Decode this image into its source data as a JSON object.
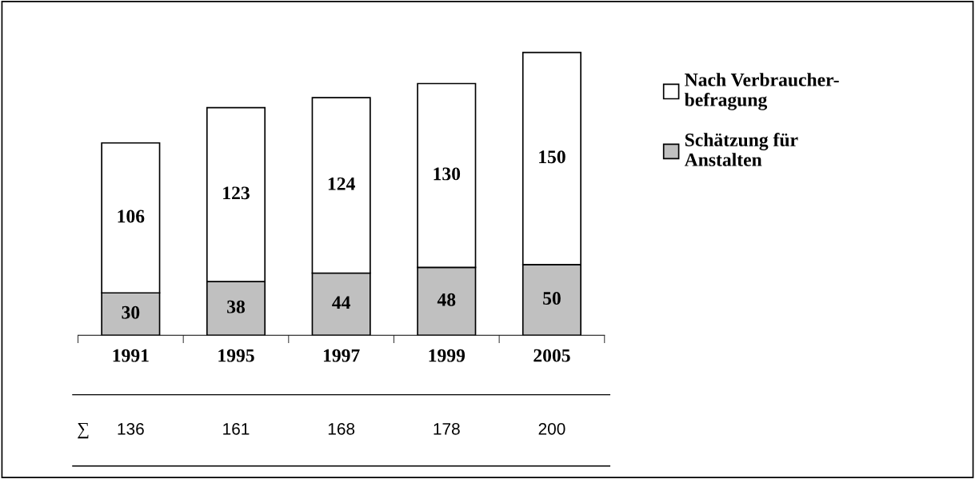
{
  "chart_data": {
    "type": "bar",
    "stacked": true,
    "categories": [
      "1991",
      "1995",
      "1997",
      "1999",
      "2005"
    ],
    "series": [
      {
        "name": "Schätzung für\nAnstalten",
        "color": "#c0c0c0",
        "values": [
          30,
          38,
          44,
          48,
          50
        ]
      },
      {
        "name": "Nach Verbraucher-\nbefragung",
        "color": "#ffffff",
        "values": [
          106,
          123,
          124,
          130,
          150
        ]
      }
    ],
    "data_labels": true,
    "annotations": [
      "∑",
      "136",
      "161",
      "168",
      "178",
      "200"
    ],
    "legend": "right",
    "grid": false,
    "tick_labels": "x"
  }
}
